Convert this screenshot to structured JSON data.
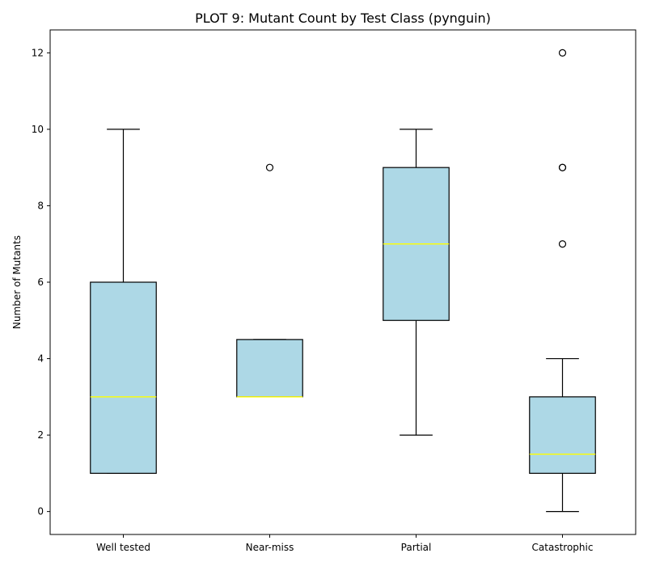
{
  "chart_data": {
    "type": "box",
    "title": "PLOT 9: Mutant Count by Test Class (pynguin)",
    "xlabel": "",
    "ylabel": "Number of Mutants",
    "ylim": [
      -0.6,
      12.6
    ],
    "yticks": [
      0,
      2,
      4,
      6,
      8,
      10,
      12
    ],
    "grid": false,
    "categories": [
      "Well tested",
      "Near-miss",
      "Partial",
      "Catastrophic"
    ],
    "boxes": [
      {
        "category": "Well tested",
        "whisker_low": 1,
        "q1": 1,
        "median": 3,
        "q3": 6,
        "whisker_high": 10,
        "outliers": []
      },
      {
        "category": "Near-miss",
        "whisker_low": 3,
        "q1": 3,
        "median": 3,
        "q3": 4.5,
        "whisker_high": 4.5,
        "outliers": [
          9
        ]
      },
      {
        "category": "Partial",
        "whisker_low": 2,
        "q1": 5,
        "median": 7,
        "q3": 9,
        "whisker_high": 10,
        "outliers": []
      },
      {
        "category": "Catastrophic",
        "whisker_low": 0,
        "q1": 1,
        "median": 1.5,
        "q3": 3,
        "whisker_high": 4,
        "outliers": [
          7,
          9,
          9,
          12
        ]
      }
    ],
    "colors": {
      "box_fill": "#add8e6",
      "median_line": "#ffff00",
      "edge": "#000000"
    }
  }
}
